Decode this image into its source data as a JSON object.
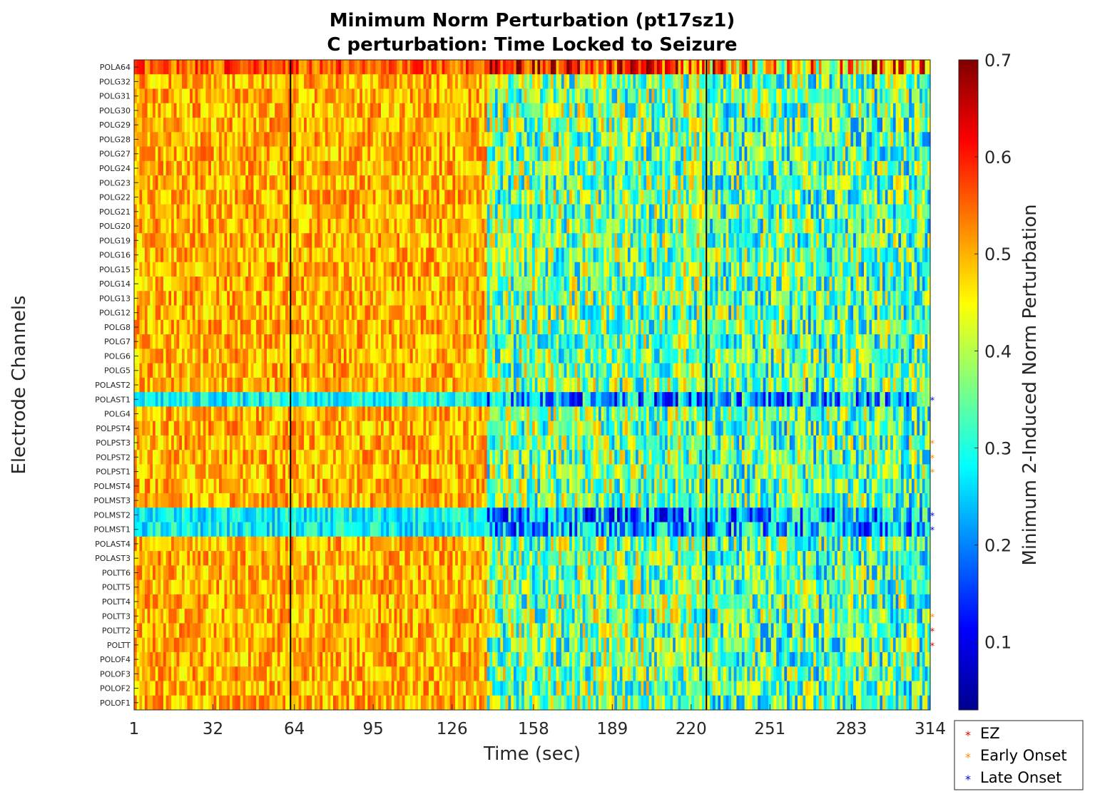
{
  "colors": {
    "normal_label": "#262626",
    "ez": "#e60000",
    "early_onset": "#ff8c00",
    "late_onset": "#0000e6",
    "onset_line": "#000000"
  },
  "chart_data": {
    "type": "heatmap",
    "title": [
      "Minimum Norm Perturbation (pt17sz1)",
      "C perturbation:  Time Locked to Seizure"
    ],
    "xlabel": "Time (sec)",
    "ylabel": "Electrode Channels",
    "x_ticks": [
      "1",
      "32",
      "64",
      "95",
      "126",
      "158",
      "189",
      "220",
      "251",
      "283",
      "314"
    ],
    "xlim": [
      1,
      314
    ],
    "colorbar": {
      "label": "Minimum 2-Induced Norm Perturbation",
      "colormap": "jet",
      "range": [
        0.03,
        0.7
      ],
      "ticks": [
        "0.1",
        "0.2",
        "0.3",
        "0.4",
        "0.5",
        "0.6",
        "0.7"
      ]
    },
    "vertical_lines_sec": [
      62.5,
      226
    ],
    "channels_top_to_bottom": [
      {
        "name": "POLA64",
        "group": "normal"
      },
      {
        "name": "POLG32",
        "group": "normal"
      },
      {
        "name": "POLG31",
        "group": "normal"
      },
      {
        "name": "POLG30",
        "group": "normal"
      },
      {
        "name": "POLG29",
        "group": "normal"
      },
      {
        "name": "POLG28",
        "group": "normal"
      },
      {
        "name": "POLG27",
        "group": "normal"
      },
      {
        "name": "POLG24",
        "group": "normal"
      },
      {
        "name": "POLG23",
        "group": "normal"
      },
      {
        "name": "POLG22",
        "group": "normal"
      },
      {
        "name": "POLG21",
        "group": "normal"
      },
      {
        "name": "POLG20",
        "group": "normal"
      },
      {
        "name": "POLG19",
        "group": "normal"
      },
      {
        "name": "POLG16",
        "group": "normal"
      },
      {
        "name": "POLG15",
        "group": "normal"
      },
      {
        "name": "POLG14",
        "group": "normal"
      },
      {
        "name": "POLG13",
        "group": "normal"
      },
      {
        "name": "POLG12",
        "group": "normal"
      },
      {
        "name": "POLG8",
        "group": "normal"
      },
      {
        "name": "POLG7",
        "group": "normal"
      },
      {
        "name": "POLG6",
        "group": "normal"
      },
      {
        "name": "POLG5",
        "group": "normal"
      },
      {
        "name": "POLAST2",
        "group": "normal"
      },
      {
        "name": "POLAST1",
        "group": "late"
      },
      {
        "name": "POLG4",
        "group": "normal"
      },
      {
        "name": "POLPST4",
        "group": "normal"
      },
      {
        "name": "POLPST3",
        "group": "early"
      },
      {
        "name": "POLPST2",
        "group": "early"
      },
      {
        "name": "POLPST1",
        "group": "early"
      },
      {
        "name": "POLMST4",
        "group": "normal"
      },
      {
        "name": "POLMST3",
        "group": "normal"
      },
      {
        "name": "POLMST2",
        "group": "late"
      },
      {
        "name": "POLMST1",
        "group": "late"
      },
      {
        "name": "POLAST4",
        "group": "normal"
      },
      {
        "name": "POLAST3",
        "group": "normal"
      },
      {
        "name": "POLTT6",
        "group": "normal"
      },
      {
        "name": "POLTT5",
        "group": "normal"
      },
      {
        "name": "POLTT4",
        "group": "normal"
      },
      {
        "name": "POLTT3",
        "group": "early"
      },
      {
        "name": "POLTT2",
        "group": "ez"
      },
      {
        "name": "POLTT",
        "group": "ez"
      },
      {
        "name": "POLOF4",
        "group": "normal"
      },
      {
        "name": "POLOF3",
        "group": "normal"
      },
      {
        "name": "POLOF2",
        "group": "normal"
      },
      {
        "name": "POLOF1",
        "group": "normal"
      }
    ],
    "legend": {
      "position": "bottom-right",
      "entries": [
        {
          "label": "EZ",
          "marker": "*",
          "group": "ez"
        },
        {
          "label": "Early Onset",
          "marker": "*",
          "group": "early"
        },
        {
          "label": "Late Onset",
          "marker": "*",
          "group": "late"
        }
      ]
    }
  }
}
